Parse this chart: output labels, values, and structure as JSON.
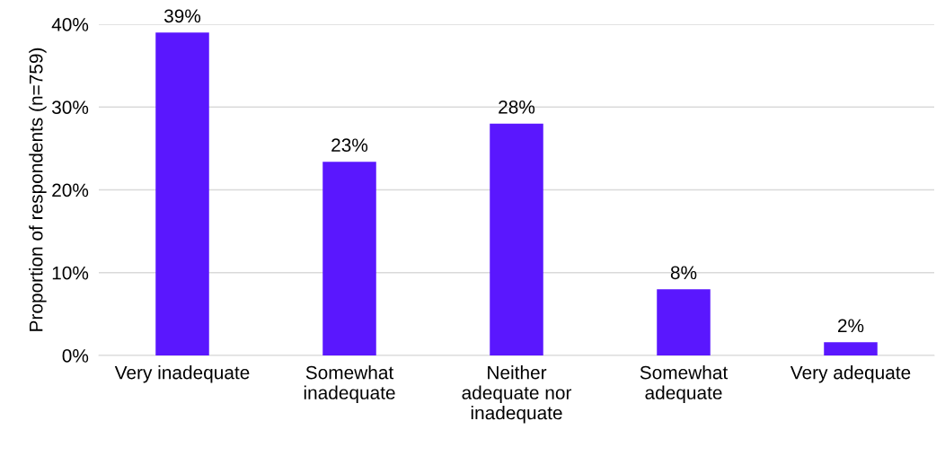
{
  "chart_data": {
    "type": "bar",
    "ylabel": "Proportion of respondents (n=759)",
    "categories": [
      "Very inadequate",
      "Somewhat inadequate",
      "Neither adequate nor inadequate",
      "Somewhat adequate",
      "Very adequate"
    ],
    "values": [
      39,
      23.4,
      28,
      8,
      1.6
    ],
    "value_labels": [
      "39%",
      "23%",
      "28%",
      "8%",
      "2%"
    ],
    "color": "#5a17fe",
    "ylim": [
      0,
      40
    ],
    "yticks": [
      {
        "value": 0,
        "label": "0%"
      },
      {
        "value": 10,
        "label": "10%"
      },
      {
        "value": 20,
        "label": "20%"
      },
      {
        "value": 30,
        "label": "30%"
      },
      {
        "value": 40,
        "label": "40%"
      }
    ],
    "grid": "y"
  }
}
